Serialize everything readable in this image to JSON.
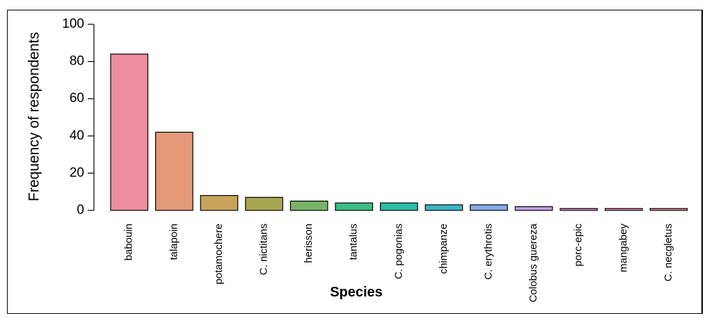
{
  "chart_data": {
    "type": "bar",
    "title": "",
    "xlabel": "Species",
    "ylabel": "Frequency of respondents",
    "ylim": [
      0,
      100
    ],
    "yticks": [
      0,
      20,
      40,
      60,
      80,
      100
    ],
    "grid": false,
    "categories": [
      "babouin",
      "talapoin",
      "potamochere",
      "C. nictitans",
      "herisson",
      "tantalus",
      "C. pogonias",
      "chimpanze",
      "C. erythrotis",
      "Colobus guereza",
      "porc-epic",
      "mangabey",
      "C. necgletus"
    ],
    "values": [
      84,
      42,
      8,
      7,
      5,
      4,
      4,
      3,
      3,
      2,
      1,
      1,
      1
    ],
    "colors": [
      "#ee8ca0",
      "#e49a78",
      "#c8a45a",
      "#a8a552",
      "#78b468",
      "#3cbc86",
      "#2ebca8",
      "#3cb6c4",
      "#86aee8",
      "#c69ee8",
      "#e892d8",
      "#ef8cba",
      "#ee8ca0"
    ]
  }
}
